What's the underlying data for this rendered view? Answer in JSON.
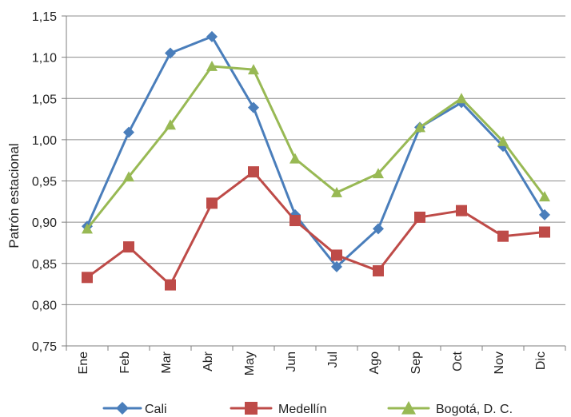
{
  "chart_data": {
    "type": "line",
    "title": "",
    "xlabel": "",
    "ylabel": "Patrón estacional",
    "categories": [
      "Ene",
      "Feb",
      "Mar",
      "Abr",
      "May",
      "Jun",
      "Jul",
      "Ago",
      "Sep",
      "Oct",
      "Nov",
      "Dic"
    ],
    "ylim": [
      0.75,
      1.15
    ],
    "ytick_values": [
      0.75,
      0.8,
      0.85,
      0.9,
      0.95,
      1.0,
      1.05,
      1.1,
      1.15
    ],
    "ytick_labels": [
      "0,75",
      "0,80",
      "0,85",
      "0,90",
      "0,95",
      "1,00",
      "1,05",
      "1,10",
      "1,15"
    ],
    "grid": true,
    "legend_position": "bottom",
    "series": [
      {
        "name": "Cali",
        "marker": "diamond",
        "color": "#4a7ebb",
        "values": [
          0.895,
          1.009,
          1.105,
          1.125,
          1.039,
          0.909,
          0.846,
          0.892,
          1.015,
          1.045,
          0.992,
          0.909
        ]
      },
      {
        "name": "Medellín",
        "marker": "square",
        "color": "#be4b48",
        "values": [
          0.833,
          0.87,
          0.824,
          0.923,
          0.961,
          0.902,
          0.86,
          0.841,
          0.906,
          0.914,
          0.883,
          0.888
        ]
      },
      {
        "name": "Bogotá, D. C.",
        "marker": "triangle",
        "color": "#98b954",
        "values": [
          0.892,
          0.955,
          1.018,
          1.089,
          1.085,
          0.977,
          0.936,
          0.959,
          1.015,
          1.05,
          0.998,
          0.931
        ]
      }
    ]
  }
}
